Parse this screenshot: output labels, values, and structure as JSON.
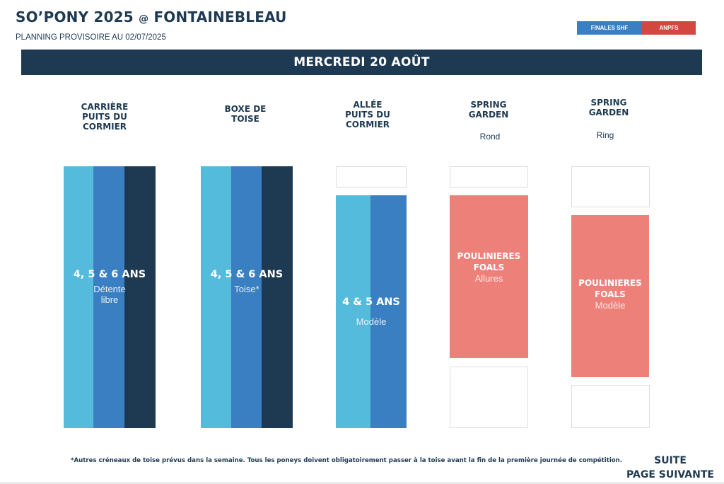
{
  "header": {
    "title_main": "SO’PONY 2025 ",
    "title_at": "@",
    "title_place": " FONTAINEBLEAU",
    "subtitle": "PLANNING PROVISOIRE AU 02/07/2025"
  },
  "legend": {
    "item1": "FINALES SHF",
    "item2": "ANPFS",
    "colors": {
      "finales_shf": "#3a7fc1",
      "anpfs": "#d2473f"
    }
  },
  "day": "MERCREDI 20 AOÛT",
  "columns": [
    {
      "head_line1": "CARRIÈRE",
      "head_line2": "PUITS DU",
      "head_line3": "CORMIER",
      "block_main": "4, 5 & 6 ANS",
      "block_sub1": "Détente",
      "block_sub2": "libre"
    },
    {
      "head_line1": "BOXE DE",
      "head_line2": "TOISE",
      "block_main": "4, 5 & 6 ANS",
      "block_sub1": "Toise*"
    },
    {
      "head_line1": "ALLÉE",
      "head_line2": "PUITS DU",
      "head_line3": "CORMIER",
      "block_main": "4 & 5 ANS",
      "block_sub1": "Modèle"
    },
    {
      "head_line1": "SPRING",
      "head_line2": "GARDEN",
      "sub": "Rond",
      "block_main1": "POULINIERES",
      "block_main2": "FOALS",
      "block_sub1": "Allures"
    },
    {
      "head_line1": "SPRING",
      "head_line2": "GARDEN",
      "sub": "Ring",
      "block_main1": "POULINIERES",
      "block_main2": "FOALS",
      "block_sub1": "Modèle"
    }
  ],
  "colors": {
    "light_blue": "#55bbdc",
    "mid_blue": "#3a7fc1",
    "dark_navy": "#1e3a52",
    "salmon": "#ee807a"
  },
  "footer": {
    "note": "*Autres créneaux de toise prévus dans la semaine. Tous les poneys doivent obligatoirement passer à la toise avant la fin de la première journée de compétition.",
    "suite_line1": "SUITE",
    "suite_line2": "PAGE SUIVANTE"
  }
}
